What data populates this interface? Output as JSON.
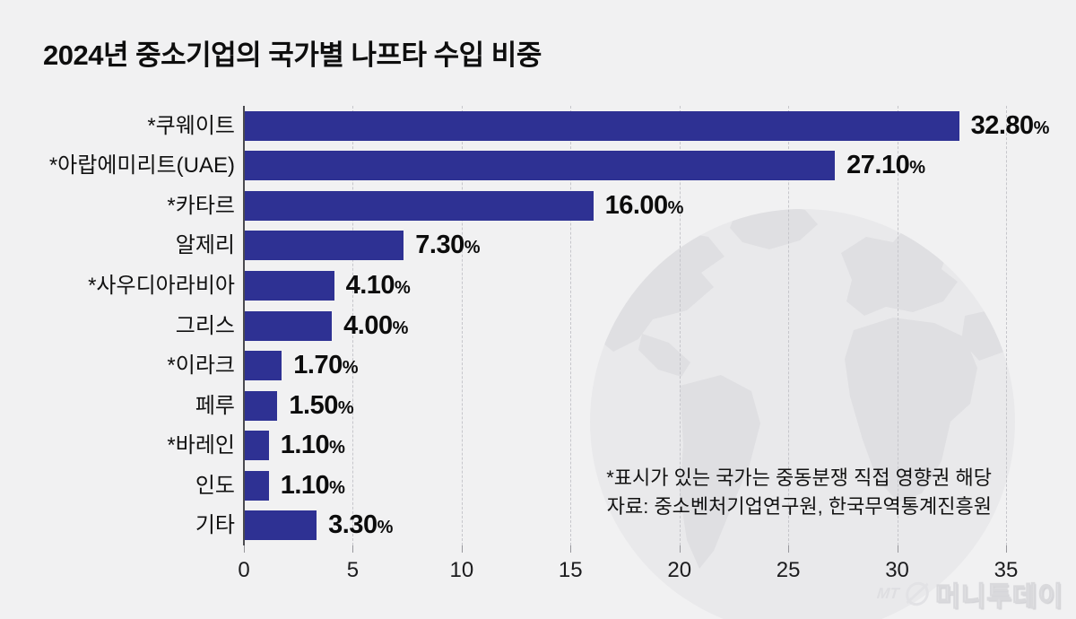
{
  "title": "2024년 중소기업의 국가별 나프타 수입 비중",
  "chart_data": {
    "type": "bar",
    "orientation": "horizontal",
    "title": "2024년 중소기업의 국가별 나프타 수입 비중",
    "categories": [
      "*쿠웨이트",
      "*아랍에미리트(UAE)",
      "*카타르",
      "알제리",
      "*사우디아라비아",
      "그리스",
      "*이라크",
      "페루",
      "*바레인",
      "인도",
      "기타"
    ],
    "values": [
      32.8,
      27.1,
      16.0,
      7.3,
      4.1,
      4.0,
      1.7,
      1.5,
      1.1,
      1.1,
      3.3
    ],
    "value_labels": [
      "32.80",
      "27.10",
      "16.00",
      "7.30",
      "4.10",
      "4.00",
      "1.70",
      "1.50",
      "1.10",
      "1.10",
      "3.30"
    ],
    "unit_suffix": "%",
    "x_ticks": [
      0,
      5,
      10,
      15,
      20,
      25,
      30,
      35
    ],
    "x_tick_labels": [
      "0",
      "5",
      "10",
      "15",
      "20",
      "25",
      "30",
      "35"
    ],
    "xlim": [
      0,
      35
    ],
    "grid": "dashed-vertical",
    "legend": "none",
    "bar_color": "#2e3193"
  },
  "notes": {
    "asterisk_note": "*표시가 있는 국가는 중동분쟁 직접 영향권 해당",
    "source": "자료: 중소벤처기업연구원, 한국무역통계진흥원"
  },
  "branding": {
    "prefix": "MT",
    "name": "머니투데이"
  },
  "colors": {
    "background": "#f1f1f2",
    "bar": "#2e3193",
    "gridline": "#c6c6cb",
    "axis": "#4a4a4f",
    "text": "#0e0e0e",
    "globe_sphere": "#e9e9eb",
    "globe_land": "#dfdfe2",
    "logo": "#dedee1"
  }
}
